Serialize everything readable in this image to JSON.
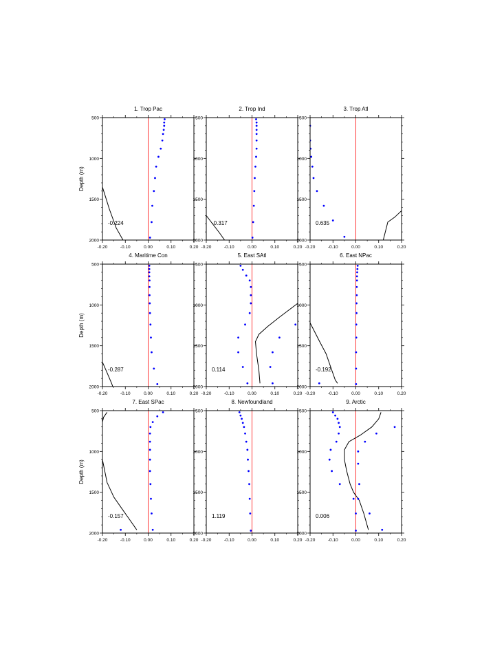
{
  "figure": {
    "ylabel": "Depth (m)",
    "colors": {
      "zero_line": "#ff0000",
      "dots": "#0000ff",
      "curve": "#000000",
      "frame": "#000000"
    }
  },
  "chart_data": [
    {
      "type": "scatter",
      "title": "1. Trop Pac",
      "annotation": "-0.224",
      "xlim": [
        -0.2,
        0.2
      ],
      "ylim": [
        2000,
        500
      ],
      "xticks": [
        "-0.20",
        "-0.10",
        "0.00",
        "0.10",
        "0.20"
      ],
      "yticks": [
        "500",
        "1000",
        "1500",
        "2000"
      ],
      "ylabel": "Depth (m)",
      "dots": [
        [
          0.072,
          520
        ],
        [
          0.07,
          560
        ],
        [
          0.07,
          600
        ],
        [
          0.068,
          650
        ],
        [
          0.065,
          700
        ],
        [
          0.062,
          780
        ],
        [
          0.055,
          880
        ],
        [
          0.045,
          980
        ],
        [
          0.035,
          1100
        ],
        [
          0.03,
          1240
        ],
        [
          0.025,
          1400
        ],
        [
          0.018,
          1580
        ],
        [
          0.015,
          1780
        ],
        [
          0.008,
          1970
        ]
      ],
      "curve": [
        [
          -0.2,
          1350
        ],
        [
          -0.17,
          1620
        ],
        [
          -0.14,
          1850
        ],
        [
          -0.11,
          2000
        ]
      ]
    },
    {
      "type": "scatter",
      "title": "2. Trop Ind",
      "annotation": "-0.317",
      "xlim": [
        -0.2,
        0.2
      ],
      "ylim": [
        2000,
        500
      ],
      "xticks": [
        "-0.20",
        "-0.10",
        "0.00",
        "0.10",
        "0.20"
      ],
      "yticks": [
        "500",
        "1000",
        "1500",
        "2000"
      ],
      "ylabel": "",
      "dots": [
        [
          0.018,
          520
        ],
        [
          0.02,
          560
        ],
        [
          0.02,
          600
        ],
        [
          0.02,
          650
        ],
        [
          0.02,
          700
        ],
        [
          0.02,
          780
        ],
        [
          0.02,
          880
        ],
        [
          0.018,
          980
        ],
        [
          0.015,
          1100
        ],
        [
          0.012,
          1240
        ],
        [
          0.01,
          1400
        ],
        [
          0.008,
          1580
        ],
        [
          0.005,
          1780
        ],
        [
          0.002,
          1970
        ]
      ],
      "curve": [
        [
          -0.2,
          1700
        ],
        [
          -0.17,
          1810
        ],
        [
          -0.14,
          1920
        ],
        [
          -0.12,
          2000
        ]
      ]
    },
    {
      "type": "scatter",
      "title": "3. Trop Atl",
      "annotation": "0.635",
      "xlim": [
        -0.2,
        0.2
      ],
      "ylim": [
        2000,
        500
      ],
      "xticks": [
        "-0.20",
        "-0.10",
        "0.00",
        "0.10",
        "0.20"
      ],
      "yticks": [
        "500",
        "1000",
        "1500",
        "2000"
      ],
      "ylabel": "",
      "dots": [
        [
          -0.2,
          600
        ],
        [
          -0.2,
          780
        ],
        [
          -0.198,
          880
        ],
        [
          -0.195,
          980
        ],
        [
          -0.19,
          1100
        ],
        [
          -0.185,
          1240
        ],
        [
          -0.17,
          1400
        ],
        [
          -0.14,
          1580
        ],
        [
          -0.1,
          1760
        ],
        [
          -0.05,
          1960
        ]
      ],
      "curve": [
        [
          0.12,
          2000
        ],
        [
          0.14,
          1780
        ],
        [
          0.17,
          1720
        ],
        [
          0.2,
          1640
        ]
      ]
    },
    {
      "type": "scatter",
      "title": "4. Maritime Con",
      "annotation": "-0.287",
      "xlim": [
        -0.2,
        0.2
      ],
      "ylim": [
        2000,
        500
      ],
      "xticks": [
        "-0.20",
        "-0.10",
        "0.00",
        "0.10",
        "0.20"
      ],
      "yticks": [
        "500",
        "1000",
        "1500",
        "2000"
      ],
      "ylabel": "Depth (m)",
      "dots": [
        [
          0.005,
          520
        ],
        [
          0.005,
          560
        ],
        [
          0.005,
          600
        ],
        [
          0.005,
          650
        ],
        [
          0.006,
          700
        ],
        [
          0.006,
          780
        ],
        [
          0.006,
          880
        ],
        [
          0.007,
          980
        ],
        [
          0.008,
          1100
        ],
        [
          0.01,
          1240
        ],
        [
          0.012,
          1400
        ],
        [
          0.015,
          1580
        ],
        [
          0.025,
          1780
        ],
        [
          0.04,
          1970
        ]
      ],
      "curve": [
        [
          -0.2,
          1700
        ],
        [
          -0.18,
          1830
        ],
        [
          -0.16,
          1960
        ],
        [
          -0.155,
          2000
        ]
      ]
    },
    {
      "type": "scatter",
      "title": "5. East SAtl",
      "annotation": "0.114",
      "xlim": [
        -0.2,
        0.2
      ],
      "ylim": [
        2000,
        500
      ],
      "xticks": [
        "-0.20",
        "-0.10",
        "0.00",
        "0.10",
        "0.20"
      ],
      "yticks": [
        "500",
        "1000",
        "1500",
        "2000"
      ],
      "ylabel": "",
      "dots": [
        [
          -0.05,
          520
        ],
        [
          -0.04,
          570
        ],
        [
          -0.025,
          640
        ],
        [
          -0.01,
          700
        ],
        [
          -0.005,
          780
        ],
        [
          -0.005,
          880
        ],
        [
          -0.005,
          980
        ],
        [
          -0.01,
          1100
        ],
        [
          -0.03,
          1240
        ],
        [
          -0.06,
          1400
        ],
        [
          -0.06,
          1580
        ],
        [
          -0.04,
          1760
        ],
        [
          -0.02,
          1960
        ],
        [
          0.19,
          1240
        ],
        [
          0.12,
          1400
        ],
        [
          0.09,
          1580
        ],
        [
          0.08,
          1760
        ],
        [
          0.09,
          1960
        ]
      ],
      "curve": [
        [
          0.2,
          980
        ],
        [
          0.12,
          1150
        ],
        [
          0.07,
          1260
        ],
        [
          0.03,
          1360
        ],
        [
          0.015,
          1450
        ],
        [
          0.02,
          1600
        ],
        [
          0.03,
          1800
        ],
        [
          0.035,
          1960
        ]
      ]
    },
    {
      "type": "scatter",
      "title": "6. East NPac",
      "annotation": "-0.192",
      "xlim": [
        -0.2,
        0.2
      ],
      "ylim": [
        2000,
        500
      ],
      "xticks": [
        "-0.20",
        "-0.10",
        "0.00",
        "0.10",
        "0.20"
      ],
      "yticks": [
        "500",
        "1000",
        "1500",
        "2000"
      ],
      "ylabel": "",
      "dots": [
        [
          0.008,
          520
        ],
        [
          0.007,
          560
        ],
        [
          0.006,
          600
        ],
        [
          0.005,
          650
        ],
        [
          0.005,
          700
        ],
        [
          0.004,
          780
        ],
        [
          0.004,
          880
        ],
        [
          0.003,
          980
        ],
        [
          0.003,
          1100
        ],
        [
          0.002,
          1240
        ],
        [
          0.002,
          1400
        ],
        [
          0.001,
          1580
        ],
        [
          0.001,
          1780
        ],
        [
          0.001,
          1970
        ],
        [
          -0.16,
          1960
        ]
      ],
      "curve": [
        [
          -0.2,
          1220
        ],
        [
          -0.16,
          1440
        ],
        [
          -0.13,
          1600
        ],
        [
          -0.11,
          1760
        ],
        [
          -0.09,
          1920
        ],
        [
          -0.08,
          1960
        ]
      ]
    },
    {
      "type": "scatter",
      "title": "7. East SPac",
      "annotation": "-0.157",
      "xlim": [
        -0.2,
        0.2
      ],
      "ylim": [
        2000,
        500
      ],
      "xticks": [
        "-0.20",
        "-0.10",
        "0.00",
        "0.10",
        "0.20"
      ],
      "yticks": [
        "500",
        "1000",
        "1500",
        "2000"
      ],
      "ylabel": "",
      "dots": [
        [
          0.065,
          520
        ],
        [
          0.04,
          570
        ],
        [
          0.02,
          640
        ],
        [
          0.01,
          700
        ],
        [
          0.008,
          780
        ],
        [
          0.008,
          880
        ],
        [
          0.008,
          980
        ],
        [
          0.008,
          1100
        ],
        [
          0.008,
          1240
        ],
        [
          0.01,
          1400
        ],
        [
          0.012,
          1580
        ],
        [
          0.015,
          1760
        ],
        [
          0.02,
          1960
        ],
        [
          -0.12,
          1960
        ]
      ],
      "curve": [
        [
          -0.18,
          520
        ],
        [
          -0.195,
          580
        ],
        [
          -0.2,
          640
        ],
        [
          -0.2,
          1100
        ],
        [
          -0.18,
          1380
        ],
        [
          -0.15,
          1560
        ],
        [
          -0.11,
          1720
        ],
        [
          -0.08,
          1840
        ],
        [
          -0.05,
          1960
        ]
      ]
    },
    {
      "type": "scatter",
      "title": "8. Newfoundland",
      "annotation": "1.119",
      "xlim": [
        -0.2,
        0.2
      ],
      "ylim": [
        2000,
        500
      ],
      "xticks": [
        "-0.20",
        "-0.10",
        "0.00",
        "0.10",
        "0.20"
      ],
      "yticks": [
        "500",
        "1000",
        "1500",
        "2000"
      ],
      "ylabel": "",
      "dots": [
        [
          -0.055,
          520
        ],
        [
          -0.05,
          560
        ],
        [
          -0.045,
          600
        ],
        [
          -0.04,
          650
        ],
        [
          -0.035,
          700
        ],
        [
          -0.03,
          780
        ],
        [
          -0.025,
          880
        ],
        [
          -0.02,
          980
        ],
        [
          -0.018,
          1100
        ],
        [
          -0.015,
          1240
        ],
        [
          -0.012,
          1400
        ],
        [
          -0.01,
          1580
        ],
        [
          -0.008,
          1760
        ],
        [
          -0.005,
          1970
        ]
      ],
      "curve": []
    },
    {
      "type": "scatter",
      "title": "9. Arctic",
      "annotation": "0.006",
      "xlim": [
        -0.2,
        0.2
      ],
      "ylim": [
        2000,
        500
      ],
      "xticks": [
        "-0.20",
        "-0.10",
        "0.00",
        "0.10",
        "0.20"
      ],
      "yticks": [
        "500",
        "1000",
        "1500",
        "2000"
      ],
      "ylabel": "",
      "dots": [
        [
          -0.1,
          520
        ],
        [
          -0.09,
          560
        ],
        [
          -0.08,
          600
        ],
        [
          -0.075,
          650
        ],
        [
          -0.07,
          700
        ],
        [
          -0.075,
          780
        ],
        [
          -0.085,
          880
        ],
        [
          -0.11,
          980
        ],
        [
          -0.115,
          1100
        ],
        [
          -0.105,
          1240
        ],
        [
          -0.07,
          1400
        ],
        [
          -0.01,
          1580
        ],
        [
          0.0,
          1760
        ],
        [
          0.0,
          1970
        ],
        [
          0.17,
          700
        ],
        [
          0.09,
          780
        ],
        [
          0.04,
          880
        ],
        [
          0.01,
          1000
        ],
        [
          0.01,
          1150
        ],
        [
          0.015,
          1400
        ],
        [
          0.01,
          1580
        ],
        [
          0.06,
          1760
        ],
        [
          0.115,
          1960
        ]
      ],
      "curve": [
        [
          0.11,
          520
        ],
        [
          0.1,
          600
        ],
        [
          0.07,
          700
        ],
        [
          0.02,
          800
        ],
        [
          -0.03,
          880
        ],
        [
          -0.05,
          980
        ],
        [
          -0.05,
          1100
        ],
        [
          -0.04,
          1240
        ],
        [
          -0.025,
          1400
        ],
        [
          -0.01,
          1500
        ],
        [
          0.015,
          1600
        ],
        [
          0.035,
          1760
        ],
        [
          0.055,
          1960
        ]
      ]
    }
  ]
}
